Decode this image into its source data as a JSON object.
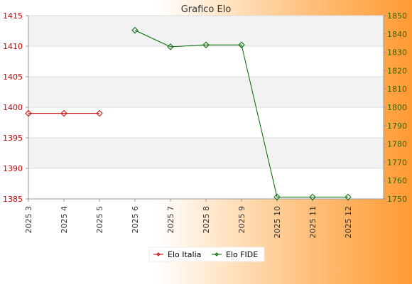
{
  "chart_data": {
    "type": "line",
    "title": "Grafico Elo",
    "categories": [
      "2025 3",
      "2025 4",
      "2025 5",
      "2025 6",
      "2025 7",
      "2025 8",
      "2025 9",
      "2025 10",
      "2025 11",
      "2025 12"
    ],
    "y_left": {
      "ylim": [
        1385,
        1415
      ],
      "ticks": [
        1385,
        1390,
        1395,
        1400,
        1405,
        1410,
        1415
      ],
      "color": "#cc0000"
    },
    "y_right": {
      "ylim": [
        1750,
        1850
      ],
      "ticks": [
        1750,
        1760,
        1770,
        1780,
        1790,
        1800,
        1810,
        1820,
        1830,
        1840,
        1850
      ],
      "color": "#336600"
    },
    "series": [
      {
        "name": "Elo Italia",
        "axis": "left",
        "color": "#cc0000",
        "values": [
          1399,
          1399,
          1399,
          null,
          null,
          null,
          null,
          null,
          null,
          null
        ]
      },
      {
        "name": "Elo FIDE",
        "axis": "right",
        "color": "#006600",
        "values": [
          null,
          null,
          null,
          1842,
          1833,
          1834,
          1834,
          1751,
          1751,
          1751
        ]
      }
    ],
    "grid": true,
    "legend": "bottom"
  }
}
